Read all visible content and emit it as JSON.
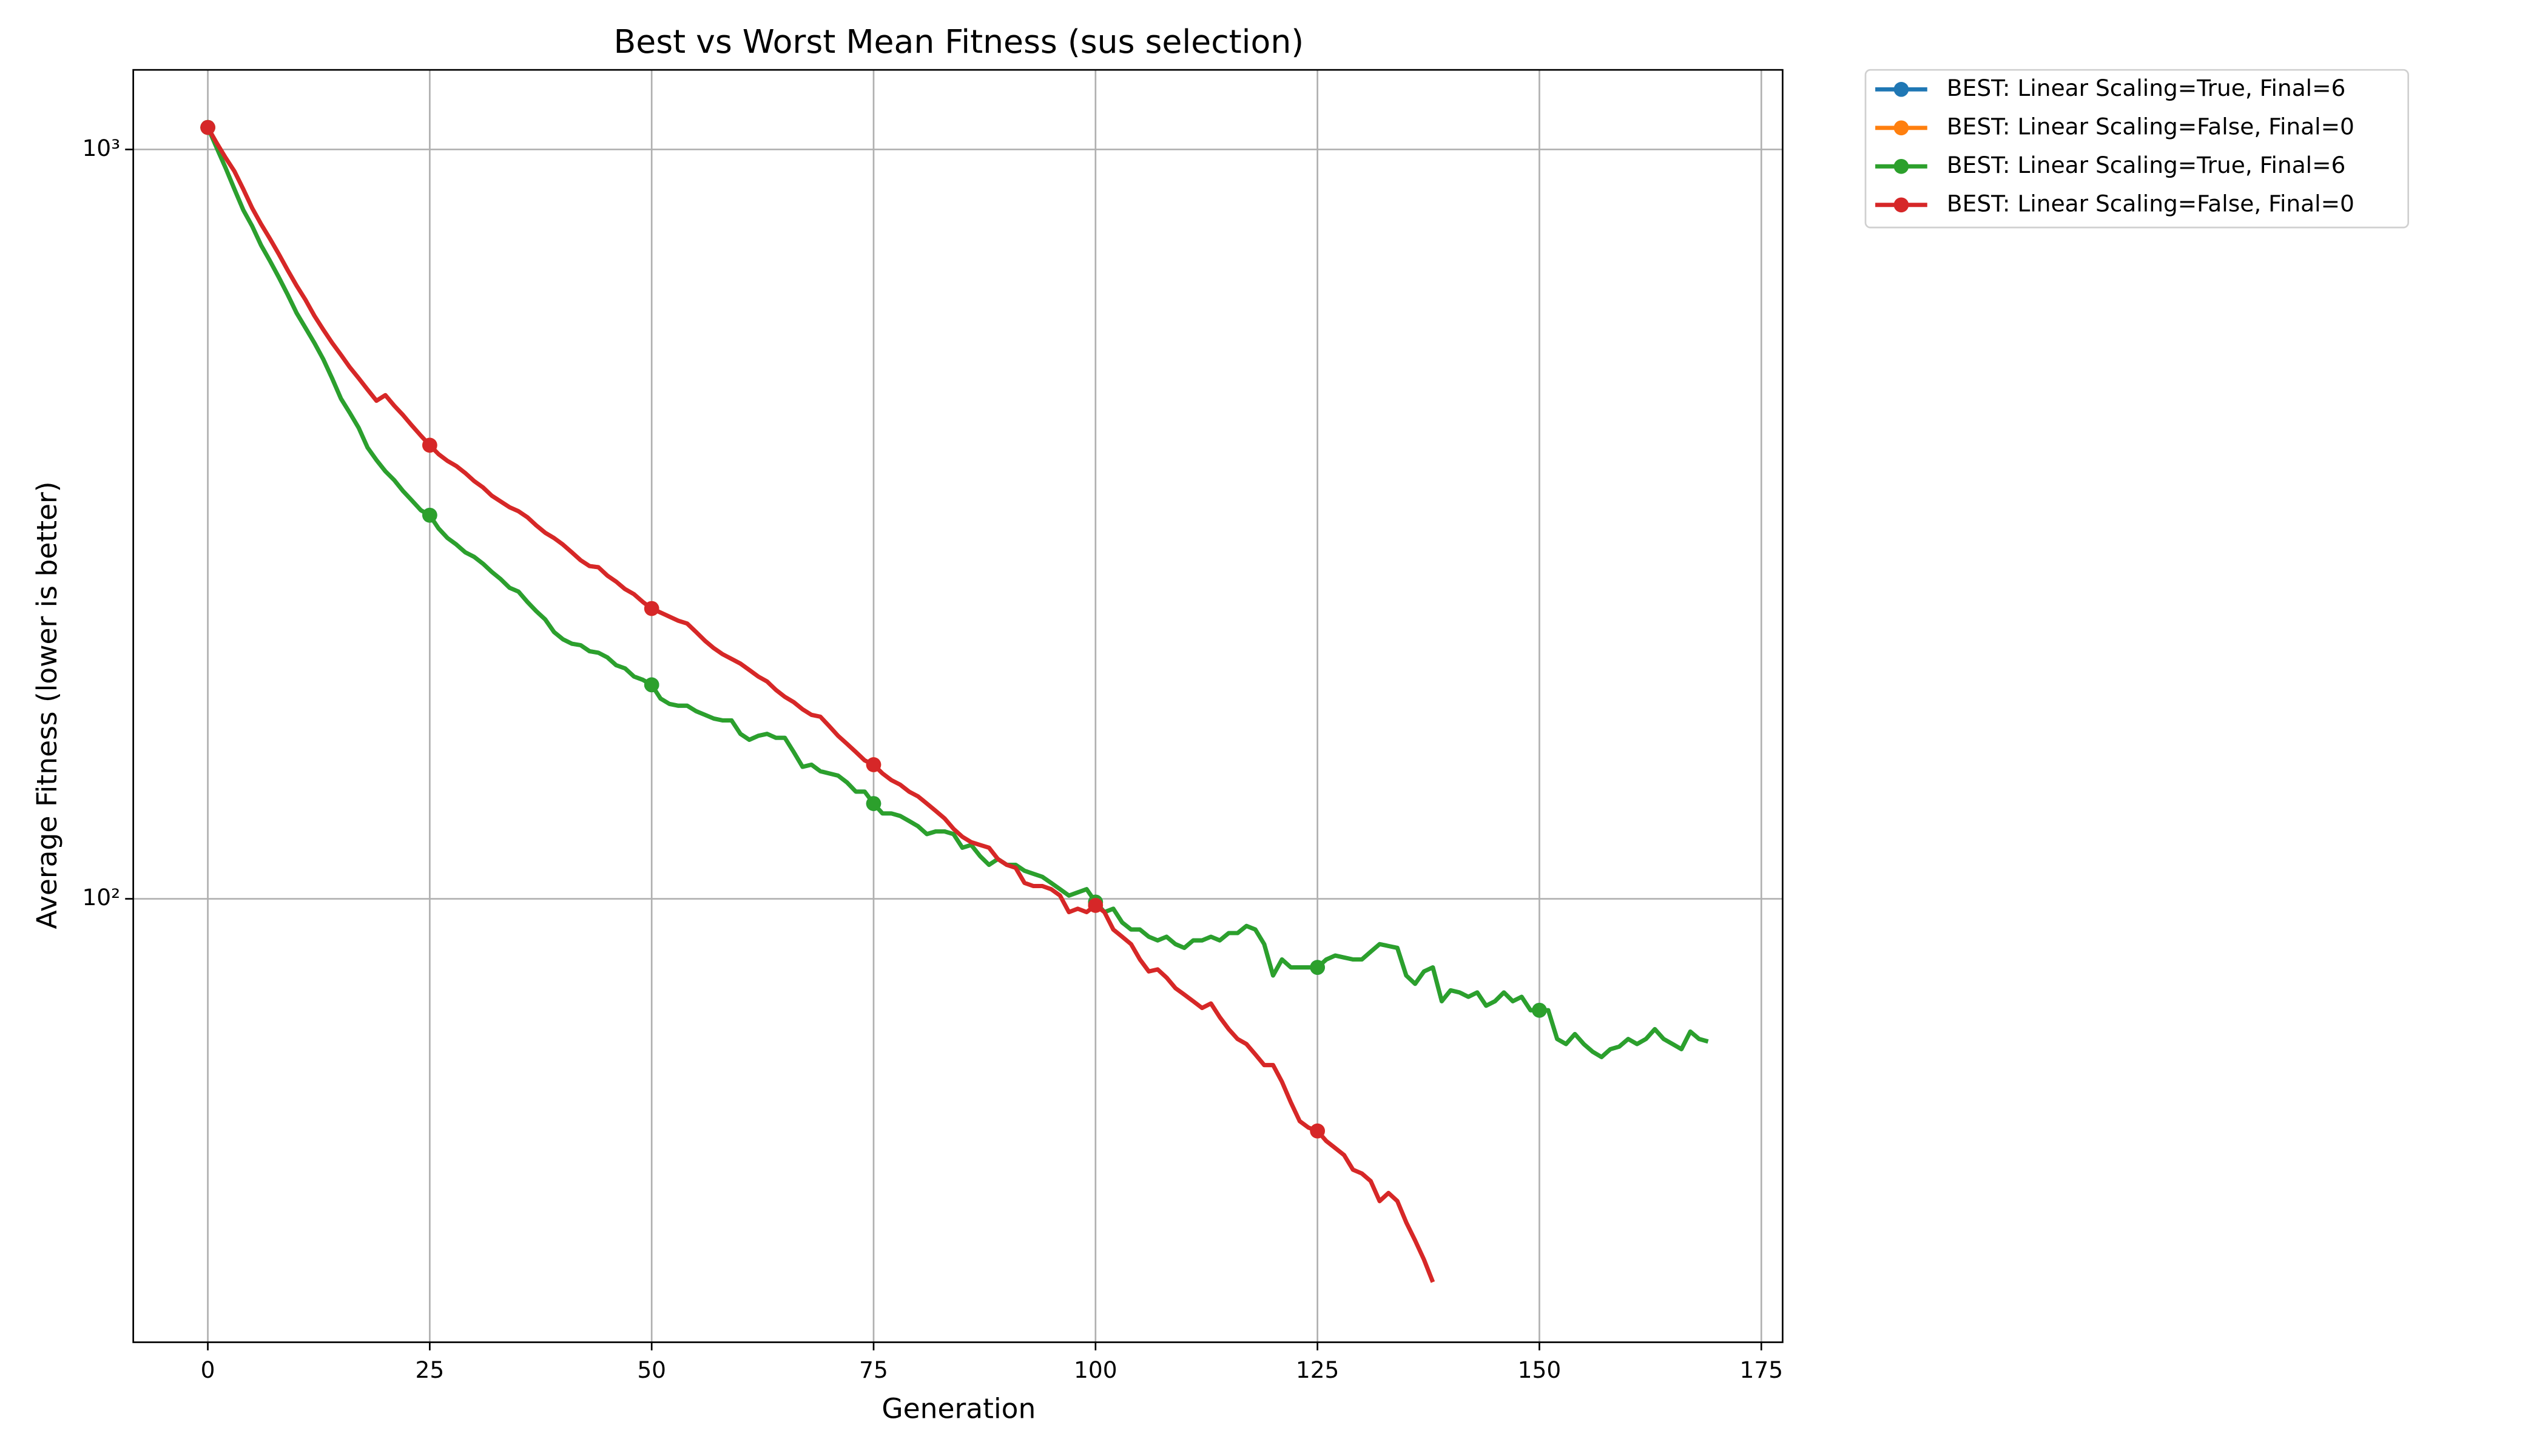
{
  "chart_data": {
    "type": "line",
    "title": "Best vs Worst Mean Fitness (sus selection)",
    "xlabel": "Generation",
    "ylabel": "Average Fitness (lower is better)",
    "yscale": "log",
    "grid": true,
    "legend_loc": "outside",
    "markevery": 25,
    "xlim": [
      -8.4,
      177.4
    ],
    "xticks": [
      0,
      25,
      50,
      75,
      100,
      125,
      150,
      175
    ],
    "ylim": [
      25.6,
      1277
    ],
    "yticks": [
      {
        "value": 100,
        "label": "10²"
      },
      {
        "value": 1000,
        "label": "10³"
      }
    ],
    "x": [
      0,
      1,
      2,
      3,
      4,
      5,
      6,
      7,
      8,
      9,
      10,
      11,
      12,
      13,
      14,
      15,
      16,
      17,
      18,
      19,
      20,
      21,
      22,
      23,
      24,
      25,
      26,
      27,
      28,
      29,
      30,
      31,
      32,
      33,
      34,
      35,
      36,
      37,
      38,
      39,
      40,
      41,
      42,
      43,
      44,
      45,
      46,
      47,
      48,
      49,
      50,
      51,
      52,
      53,
      54,
      55,
      56,
      57,
      58,
      59,
      60,
      61,
      62,
      63,
      64,
      65,
      66,
      67,
      68,
      69,
      70,
      71,
      72,
      73,
      74,
      75,
      76,
      77,
      78,
      79,
      80,
      81,
      82,
      83,
      84,
      85,
      86,
      87,
      88,
      89,
      90,
      91,
      92,
      93,
      94,
      95,
      96,
      97,
      98,
      99,
      100,
      101,
      102,
      103,
      104,
      105,
      106,
      107,
      108,
      109,
      110,
      111,
      112,
      113,
      114,
      115,
      116,
      117,
      118,
      119,
      120,
      121,
      122,
      123,
      124,
      125,
      126,
      127,
      128,
      129,
      130,
      131,
      132,
      133,
      134,
      135,
      136,
      137,
      138,
      139,
      140,
      141,
      142,
      143,
      144,
      145,
      146,
      147,
      148,
      149,
      150,
      151,
      152,
      153,
      154,
      155,
      156,
      157,
      158,
      159,
      160,
      161,
      162,
      163,
      164,
      165,
      166,
      167,
      168,
      169
    ],
    "series": [
      {
        "name": "BEST: Linear Scaling=True, Final=6",
        "color": "#1f77b4",
        "values": [
          1070,
          1005,
          945,
          885,
          830,
          790,
          745,
          710,
          675,
          640,
          605,
          578,
          552,
          525,
          495,
          465,
          445,
          425,
          400,
          385,
          372,
          362,
          350,
          340,
          330,
          325,
          312,
          303,
          297,
          290,
          286,
          280,
          273,
          267,
          260,
          257,
          249,
          242,
          236,
          227,
          222,
          219,
          218,
          214,
          213,
          210,
          205,
          203,
          198,
          196,
          193,
          185,
          182,
          181,
          181,
          178,
          176,
          174,
          173,
          173,
          166,
          163,
          165,
          166,
          164,
          164,
          157,
          150,
          151,
          148,
          147,
          146,
          143,
          139,
          139,
          134,
          130,
          130,
          129,
          127,
          125,
          122,
          123,
          123,
          122,
          117,
          118,
          114,
          111,
          113,
          111,
          111,
          109,
          108,
          107,
          105,
          103,
          101,
          102,
          103,
          99,
          96,
          97,
          93,
          91,
          91,
          89,
          88,
          89,
          87,
          86,
          88,
          88,
          89,
          88,
          90,
          90,
          92,
          91,
          87,
          79,
          83,
          81,
          81,
          81,
          81,
          83,
          84,
          83.5,
          83,
          83,
          85,
          87,
          86.5,
          86,
          79,
          77,
          80,
          81,
          73,
          75.5,
          75,
          74,
          75,
          72,
          73,
          75,
          73,
          74,
          71,
          71,
          71,
          65,
          64,
          66,
          64,
          62.5,
          61.5,
          63,
          63.5,
          65,
          64,
          65,
          67,
          65,
          64,
          63,
          66.5,
          65,
          64.5
        ]
      },
      {
        "name": "BEST: Linear Scaling=False, Final=0",
        "color": "#ff7f0e",
        "values": [
          1070,
          1020,
          975,
          935,
          885,
          835,
          795,
          760,
          725,
          690,
          658,
          630,
          600,
          575,
          552,
          532,
          512,
          495,
          478,
          462,
          470,
          455,
          442,
          428,
          415,
          403,
          392,
          384,
          378,
          370,
          361,
          354,
          345,
          339,
          333,
          329,
          323,
          315,
          308,
          303,
          297,
          290,
          283,
          278,
          277,
          270,
          265,
          259,
          255,
          249,
          244,
          241,
          238,
          235,
          233,
          227,
          221,
          216,
          212,
          209,
          206,
          202,
          198,
          195,
          190,
          186,
          183,
          179,
          176,
          175,
          170,
          165,
          161,
          157,
          153,
          151,
          147,
          144,
          142,
          139,
          137,
          134,
          131,
          128,
          124,
          121,
          119,
          118,
          117,
          113,
          111,
          110,
          105,
          104,
          104,
          103,
          101,
          96,
          97,
          96,
          98,
          96,
          91,
          89,
          87,
          83,
          80,
          80.5,
          78.5,
          76,
          74.5,
          73,
          71.5,
          72.5,
          69.5,
          67,
          65,
          64,
          62,
          60,
          60,
          57,
          53.5,
          50.5,
          49.5,
          49,
          47.5,
          46.5,
          45.5,
          43.5,
          43,
          42,
          39.5,
          40.5,
          39.5,
          37,
          35,
          33,
          30.8,
          null,
          null,
          null,
          null,
          null,
          null,
          null,
          null,
          null,
          null,
          null,
          null,
          null,
          null,
          null,
          null,
          null,
          null,
          null,
          null,
          null,
          null,
          null,
          null,
          null,
          null,
          null,
          null,
          null,
          null,
          null
        ]
      },
      {
        "name": "BEST: Linear Scaling=True, Final=6",
        "color": "#2ca02c",
        "values": [
          1070,
          1005,
          945,
          885,
          830,
          790,
          745,
          710,
          675,
          640,
          605,
          578,
          552,
          525,
          495,
          465,
          445,
          425,
          400,
          385,
          372,
          362,
          350,
          340,
          330,
          325,
          312,
          303,
          297,
          290,
          286,
          280,
          273,
          267,
          260,
          257,
          249,
          242,
          236,
          227,
          222,
          219,
          218,
          214,
          213,
          210,
          205,
          203,
          198,
          196,
          193,
          185,
          182,
          181,
          181,
          178,
          176,
          174,
          173,
          173,
          166,
          163,
          165,
          166,
          164,
          164,
          157,
          150,
          151,
          148,
          147,
          146,
          143,
          139,
          139,
          134,
          130,
          130,
          129,
          127,
          125,
          122,
          123,
          123,
          122,
          117,
          118,
          114,
          111,
          113,
          111,
          111,
          109,
          108,
          107,
          105,
          103,
          101,
          102,
          103,
          99,
          96,
          97,
          93,
          91,
          91,
          89,
          88,
          89,
          87,
          86,
          88,
          88,
          89,
          88,
          90,
          90,
          92,
          91,
          87,
          79,
          83,
          81,
          81,
          81,
          81,
          83,
          84,
          83.5,
          83,
          83,
          85,
          87,
          86.5,
          86,
          79,
          77,
          80,
          81,
          73,
          75.5,
          75,
          74,
          75,
          72,
          73,
          75,
          73,
          74,
          71,
          71,
          71,
          65,
          64,
          66,
          64,
          62.5,
          61.5,
          63,
          63.5,
          65,
          64,
          65,
          67,
          65,
          64,
          63,
          66.5,
          65,
          64.5
        ]
      },
      {
        "name": "BEST: Linear Scaling=False, Final=0",
        "color": "#d62728",
        "values": [
          1070,
          1020,
          975,
          935,
          885,
          835,
          795,
          760,
          725,
          690,
          658,
          630,
          600,
          575,
          552,
          532,
          512,
          495,
          478,
          462,
          470,
          455,
          442,
          428,
          415,
          403,
          392,
          384,
          378,
          370,
          361,
          354,
          345,
          339,
          333,
          329,
          323,
          315,
          308,
          303,
          297,
          290,
          283,
          278,
          277,
          270,
          265,
          259,
          255,
          249,
          244,
          241,
          238,
          235,
          233,
          227,
          221,
          216,
          212,
          209,
          206,
          202,
          198,
          195,
          190,
          186,
          183,
          179,
          176,
          175,
          170,
          165,
          161,
          157,
          153,
          151,
          147,
          144,
          142,
          139,
          137,
          134,
          131,
          128,
          124,
          121,
          119,
          118,
          117,
          113,
          111,
          110,
          105,
          104,
          104,
          103,
          101,
          96,
          97,
          96,
          98,
          96,
          91,
          89,
          87,
          83,
          80,
          80.5,
          78.5,
          76,
          74.5,
          73,
          71.5,
          72.5,
          69.5,
          67,
          65,
          64,
          62,
          60,
          60,
          57,
          53.5,
          50.5,
          49.5,
          49,
          47.5,
          46.5,
          45.5,
          43.5,
          43,
          42,
          39.5,
          40.5,
          39.5,
          37,
          35,
          33,
          30.8,
          null,
          null,
          null,
          null,
          null,
          null,
          null,
          null,
          null,
          null,
          null,
          null,
          null,
          null,
          null,
          null,
          null,
          null,
          null,
          null,
          null,
          null,
          null,
          null,
          null,
          null,
          null,
          null,
          null,
          null,
          null
        ]
      }
    ]
  }
}
